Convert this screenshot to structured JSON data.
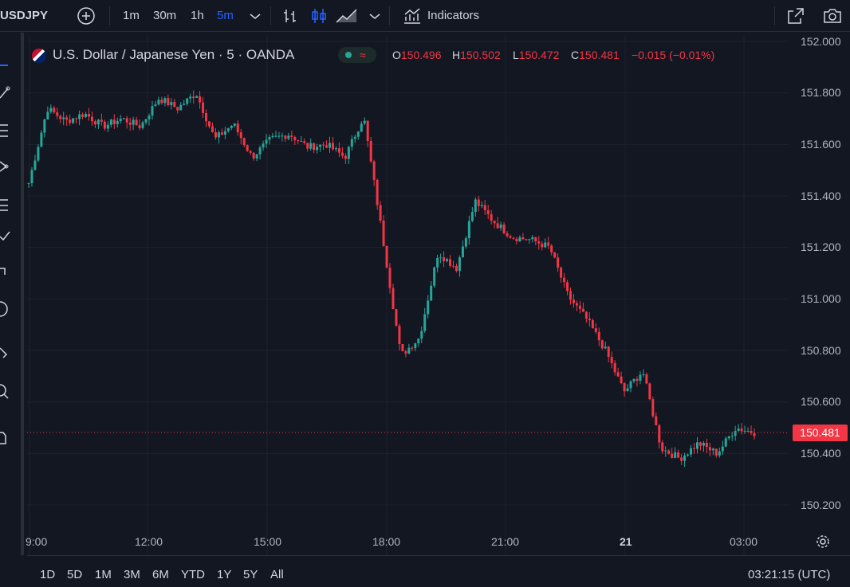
{
  "toolbar": {
    "symbol": "USDJPY",
    "intervals": [
      "1m",
      "30m",
      "1h",
      "5m"
    ],
    "active_interval": "5m",
    "indicators_label": "Indicators",
    "icons": [
      "add-symbol-icon",
      "chevron-down-icon",
      "bar-style-icon",
      "candle-style-icon",
      "area-style-icon",
      "indicators-icon",
      "fullscreen-icon",
      "snapshot-icon"
    ]
  },
  "legend": {
    "title": "U.S. Dollar / Japanese Yen · 5 · OANDA",
    "o_label": "O",
    "o_value": "150.496",
    "h_label": "H",
    "h_value": "150.502",
    "l_label": "L",
    "l_value": "150.472",
    "c_label": "C",
    "c_value": "150.481",
    "change": "−0.015 (−0.01%)",
    "status_icon": "market-open-icon"
  },
  "colors": {
    "up": "#26a69a",
    "down": "#f23645",
    "background": "#131722",
    "grid": "#1e222d",
    "accent": "#2962ff"
  },
  "price_axis": {
    "ticks": [
      "152.000",
      "151.800",
      "151.600",
      "151.400",
      "151.200",
      "151.000",
      "150.800",
      "150.600",
      "150.400",
      "150.200"
    ],
    "last_price": "150.481"
  },
  "time_axis": {
    "ticks": [
      "9:00",
      "12:00",
      "15:00",
      "18:00",
      "21:00",
      "21",
      "03:00"
    ]
  },
  "chart_data": {
    "type": "candlestick",
    "xlabel": "",
    "ylabel": "",
    "ylim": [
      150.2,
      152.0
    ],
    "grid": true,
    "x": [
      "09:00",
      "09:30",
      "10:00",
      "10:30",
      "11:00",
      "11:30",
      "12:00",
      "12:30",
      "13:00",
      "13:30",
      "14:00",
      "14:30",
      "15:00",
      "15:30",
      "16:00",
      "16:30",
      "17:00",
      "17:30",
      "18:00",
      "18:15",
      "18:30",
      "18:45",
      "19:00",
      "19:30",
      "20:00",
      "20:30",
      "21:00",
      "21:30",
      "22:00",
      "22:30",
      "23:00",
      "23:30",
      "00:00",
      "00:30",
      "01:00",
      "01:30",
      "02:00",
      "02:30",
      "03:00",
      "03:15"
    ],
    "close": [
      151.45,
      151.74,
      151.69,
      151.72,
      151.67,
      151.7,
      151.67,
      151.78,
      151.74,
      151.8,
      151.62,
      151.68,
      151.55,
      151.62,
      151.64,
      151.59,
      151.6,
      151.55,
      151.71,
      151.25,
      150.78,
      150.85,
      151.18,
      151.12,
      151.38,
      151.3,
      151.24,
      151.23,
      151.2,
      151.01,
      150.92,
      150.8,
      150.64,
      150.72,
      150.42,
      150.38,
      150.44,
      150.4,
      150.5,
      150.481
    ],
    "last_ohlc": {
      "open": 150.496,
      "high": 150.502,
      "low": 150.472,
      "close": 150.481
    }
  },
  "range_buttons": [
    "1D",
    "5D",
    "1M",
    "3M",
    "6M",
    "YTD",
    "1Y",
    "5Y",
    "All"
  ],
  "clock": "03:21:15 (UTC)"
}
